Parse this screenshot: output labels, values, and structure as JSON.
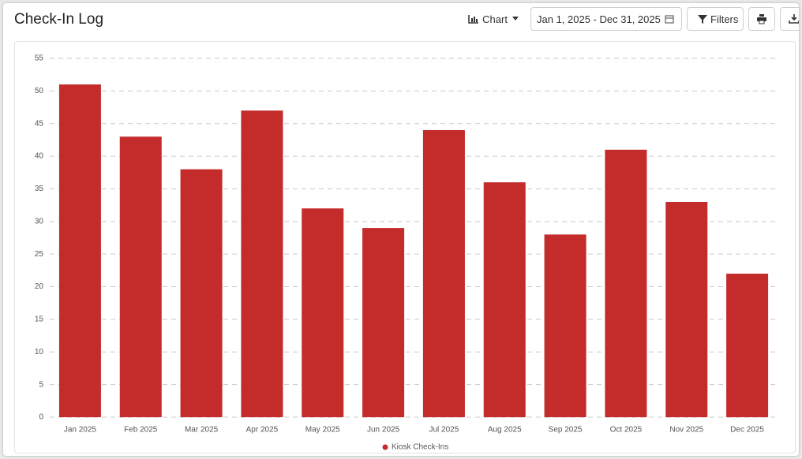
{
  "header": {
    "title": "Check-In Log",
    "toolbar": {
      "view": "Chart",
      "date_range": "Jan 1, 2025 - Dec 31, 2025",
      "filters": "Filters"
    }
  },
  "chart_data": {
    "type": "bar",
    "categories": [
      "Jan 2025",
      "Feb 2025",
      "Mar 2025",
      "Apr 2025",
      "May 2025",
      "Jun 2025",
      "Jul 2025",
      "Aug 2025",
      "Sep 2025",
      "Oct 2025",
      "Nov 2025",
      "Dec 2025"
    ],
    "series": [
      {
        "name": "Kiosk Check-Ins",
        "color": "#c42b2b",
        "values": [
          51,
          43,
          38,
          47,
          32,
          29,
          44,
          36,
          28,
          41,
          33,
          22
        ]
      }
    ],
    "ylim": [
      0,
      55
    ],
    "yticks": [
      0,
      5,
      10,
      15,
      20,
      25,
      30,
      35,
      40,
      45,
      50,
      55
    ],
    "grid": true,
    "legend": "bottom"
  }
}
